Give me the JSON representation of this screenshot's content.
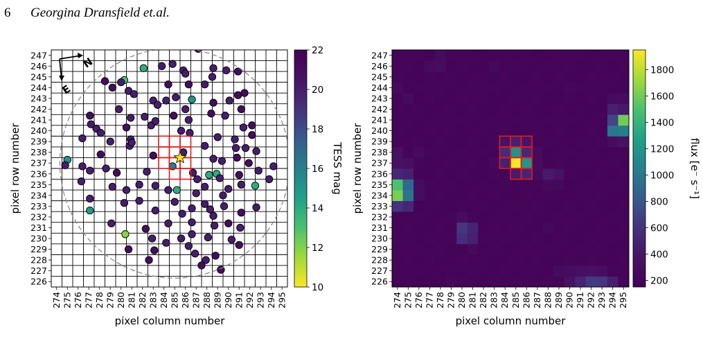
{
  "header": {
    "page_number": "6",
    "running_head": "Georgina Dransfield et.al."
  },
  "chart_data": [
    {
      "type": "scatter",
      "panel": "left",
      "xlabel": "pixel column number",
      "ylabel": "pixel row number",
      "colorbar_label": "TESS mag",
      "colorbar_ticks": [
        10,
        12,
        14,
        16,
        18,
        20,
        22
      ],
      "colorbar_range": [
        10,
        22
      ],
      "colormap": "viridis_r",
      "xticks": [
        "274",
        "275",
        "276",
        "277",
        "278",
        "279",
        "280",
        "281",
        "282",
        "283",
        "284",
        "285",
        "286",
        "287",
        "288",
        "289",
        "290",
        "291",
        "292",
        "293",
        "294",
        "295"
      ],
      "yticks": [
        "226",
        "227",
        "228",
        "229",
        "230",
        "231",
        "232",
        "233",
        "234",
        "235",
        "236",
        "237",
        "238",
        "239",
        "240",
        "241",
        "242",
        "243",
        "244",
        "245",
        "246",
        "247"
      ],
      "compass": {
        "north_label": "N",
        "east_label": "E"
      },
      "aperture_pixels": [
        [
          284,
          239
        ],
        [
          285,
          239
        ],
        [
          286,
          239
        ],
        [
          284,
          238
        ],
        [
          285,
          238
        ],
        [
          286,
          238
        ],
        [
          284,
          237
        ],
        [
          285,
          237
        ],
        [
          286,
          237
        ],
        [
          285,
          236
        ],
        [
          286,
          236
        ]
      ],
      "target": {
        "x": 285.5,
        "y": 237.5,
        "marker": "star"
      },
      "field_circle": {
        "center": [
          285.0,
          237.0
        ],
        "radius": 10.7,
        "style": "dashed"
      },
      "grid": "on",
      "stars": [
        [
          287.2,
          247.6,
          21
        ],
        [
          283.8,
          246.0,
          20
        ],
        [
          284.8,
          246.2,
          20
        ],
        [
          282.1,
          245.8,
          14
        ],
        [
          285.8,
          245.6,
          20
        ],
        [
          286.0,
          245.3,
          20
        ],
        [
          288.6,
          245.8,
          20
        ],
        [
          289.8,
          245.6,
          20
        ],
        [
          290.9,
          245.5,
          21
        ],
        [
          288.5,
          245.0,
          20
        ],
        [
          280.3,
          244.7,
          13
        ],
        [
          280.0,
          244.5,
          20
        ],
        [
          278.5,
          244.6,
          21
        ],
        [
          279.2,
          244.0,
          21
        ],
        [
          284.4,
          244.3,
          21
        ],
        [
          286.3,
          244.3,
          21
        ],
        [
          287.8,
          244.3,
          20
        ],
        [
          280.7,
          243.7,
          20
        ],
        [
          281.2,
          243.4,
          20
        ],
        [
          290.9,
          243.3,
          21
        ],
        [
          291.5,
          243.5,
          21
        ],
        [
          285.1,
          243.1,
          20
        ],
        [
          283.0,
          242.8,
          20
        ],
        [
          283.4,
          242.4,
          20
        ],
        [
          284.2,
          242.8,
          20
        ],
        [
          286.6,
          242.9,
          15
        ],
        [
          288.6,
          242.6,
          21
        ],
        [
          290.1,
          242.8,
          20
        ],
        [
          279.8,
          242.0,
          20
        ],
        [
          291.2,
          242.0,
          21
        ],
        [
          286.0,
          242.0,
          20
        ],
        [
          288.4,
          241.6,
          21
        ],
        [
          289.7,
          241.4,
          20
        ],
        [
          277.1,
          241.4,
          21
        ],
        [
          282.2,
          241.3,
          20
        ],
        [
          284.9,
          241.4,
          21
        ],
        [
          280.9,
          241.2,
          20
        ],
        [
          286.3,
          241.0,
          20
        ],
        [
          291.4,
          240.3,
          20
        ],
        [
          277.2,
          240.6,
          20
        ],
        [
          277.7,
          240.2,
          20
        ],
        [
          278.1,
          239.8,
          20
        ],
        [
          280.5,
          240.3,
          21
        ],
        [
          282.8,
          240.5,
          20
        ],
        [
          285.6,
          240.0,
          20
        ],
        [
          286.4,
          239.8,
          20
        ],
        [
          289.0,
          239.4,
          20
        ],
        [
          290.6,
          239.2,
          20
        ],
        [
          292.2,
          239.6,
          21
        ],
        [
          292.2,
          240.5,
          21
        ],
        [
          276.4,
          239.3,
          20
        ],
        [
          279.0,
          239.0,
          20
        ],
        [
          280.8,
          238.6,
          20
        ],
        [
          280.9,
          239.2,
          20
        ],
        [
          281.0,
          238.9,
          20
        ],
        [
          287.8,
          238.6,
          20
        ],
        [
          290.7,
          238.4,
          20
        ],
        [
          292.6,
          238.1,
          20
        ],
        [
          278.1,
          237.8,
          21
        ],
        [
          283.0,
          237.7,
          21
        ],
        [
          285.8,
          238.0,
          20
        ],
        [
          288.6,
          237.4,
          20
        ],
        [
          289.4,
          237.2,
          20
        ],
        [
          290.8,
          237.5,
          21
        ],
        [
          291.9,
          237.0,
          21
        ],
        [
          275.0,
          237.3,
          15
        ],
        [
          274.8,
          236.8,
          20
        ],
        [
          276.4,
          236.7,
          20
        ],
        [
          277.1,
          236.3,
          20
        ],
        [
          278.6,
          236.5,
          20
        ],
        [
          279.6,
          236.1,
          21
        ],
        [
          282.4,
          236.2,
          20
        ],
        [
          286.7,
          236.1,
          20
        ],
        [
          288.2,
          235.9,
          14
        ],
        [
          288.9,
          236.0,
          14
        ],
        [
          289.2,
          235.6,
          20
        ],
        [
          291.0,
          235.9,
          21
        ],
        [
          292.8,
          236.3,
          20
        ],
        [
          294.2,
          236.7,
          20
        ],
        [
          276.3,
          235.3,
          20
        ],
        [
          279.2,
          234.8,
          20
        ],
        [
          280.5,
          234.5,
          20
        ],
        [
          281.7,
          235.0,
          20
        ],
        [
          283.2,
          234.9,
          20
        ],
        [
          284.4,
          234.5,
          20
        ],
        [
          285.2,
          234.5,
          14
        ],
        [
          287.1,
          235.5,
          20
        ],
        [
          290.0,
          234.6,
          20
        ],
        [
          291.2,
          235.0,
          20
        ],
        [
          292.5,
          234.9,
          14
        ],
        [
          293.8,
          235.5,
          20
        ],
        [
          287.0,
          234.2,
          20
        ],
        [
          287.8,
          234.8,
          20
        ],
        [
          289.5,
          234.0,
          20
        ],
        [
          277.1,
          233.7,
          20
        ],
        [
          280.3,
          233.3,
          20
        ],
        [
          281.7,
          233.5,
          20
        ],
        [
          285.0,
          233.4,
          20
        ],
        [
          286.6,
          232.8,
          20
        ],
        [
          288.3,
          232.7,
          20
        ],
        [
          287.8,
          233.2,
          20
        ],
        [
          289.6,
          233.0,
          20
        ],
        [
          292.6,
          232.9,
          20
        ],
        [
          277.1,
          232.6,
          15
        ],
        [
          283.2,
          232.6,
          20
        ],
        [
          285.7,
          232.3,
          20
        ],
        [
          288.6,
          232.1,
          20
        ],
        [
          291.2,
          232.4,
          21
        ],
        [
          279.1,
          231.4,
          20
        ],
        [
          282.3,
          230.9,
          21
        ],
        [
          284.4,
          231.4,
          20
        ],
        [
          286.6,
          231.5,
          20
        ],
        [
          288.7,
          231.2,
          20
        ],
        [
          290.0,
          231.4,
          21
        ],
        [
          291.1,
          231.0,
          20
        ],
        [
          280.4,
          230.4,
          12
        ],
        [
          282.9,
          230.0,
          20
        ],
        [
          285.6,
          230.0,
          20
        ],
        [
          286.6,
          230.4,
          20
        ],
        [
          288.1,
          230.1,
          20
        ],
        [
          290.3,
          229.9,
          20
        ],
        [
          284.2,
          229.6,
          20
        ],
        [
          286.3,
          229.3,
          20
        ],
        [
          291.0,
          229.4,
          21
        ],
        [
          280.7,
          229.0,
          21
        ],
        [
          283.1,
          228.9,
          21
        ],
        [
          286.9,
          228.6,
          20
        ],
        [
          287.9,
          228.0,
          20
        ],
        [
          288.8,
          228.4,
          21
        ],
        [
          282.6,
          228.0,
          21
        ],
        [
          289.3,
          227.1,
          21
        ],
        [
          287.5,
          227.5,
          21
        ],
        [
          284.8,
          236.7,
          16
        ],
        [
          283.2,
          240.9,
          20
        ],
        [
          291.6,
          238.4,
          20
        ]
      ]
    },
    {
      "type": "heatmap",
      "panel": "right",
      "xlabel": "pixel column number",
      "ylabel": "pixel row number",
      "colorbar_label": "flux [e⁻ s⁻¹]",
      "colorbar_ticks": [
        200,
        400,
        600,
        800,
        1000,
        1200,
        1400,
        1600,
        1800
      ],
      "colorbar_range": [
        150,
        1950
      ],
      "colormap": "viridis",
      "x": [
        274,
        275,
        276,
        277,
        278,
        279,
        280,
        281,
        282,
        283,
        284,
        285,
        286,
        287,
        288,
        289,
        290,
        291,
        292,
        293,
        294,
        295
      ],
      "y": [
        226,
        227,
        228,
        229,
        230,
        231,
        232,
        233,
        234,
        235,
        236,
        237,
        238,
        239,
        240,
        241,
        242,
        243,
        244,
        245,
        246,
        247
      ],
      "aperture_pixels": [
        [
          284,
          239
        ],
        [
          285,
          239
        ],
        [
          286,
          239
        ],
        [
          284,
          238
        ],
        [
          285,
          238
        ],
        [
          286,
          238
        ],
        [
          284,
          237
        ],
        [
          285,
          237
        ],
        [
          286,
          237
        ],
        [
          285,
          236
        ],
        [
          286,
          236
        ]
      ],
      "bright_pixels": [
        {
          "x": 274,
          "y": 235,
          "value": 1500
        },
        {
          "x": 274,
          "y": 234,
          "value": 1620
        },
        {
          "x": 275,
          "y": 235,
          "value": 900
        },
        {
          "x": 275,
          "y": 234,
          "value": 980
        },
        {
          "x": 274,
          "y": 236,
          "value": 520
        },
        {
          "x": 275,
          "y": 236,
          "value": 470
        },
        {
          "x": 274,
          "y": 233,
          "value": 600
        },
        {
          "x": 275,
          "y": 233,
          "value": 520
        },
        {
          "x": 274,
          "y": 237,
          "value": 350
        },
        {
          "x": 274,
          "y": 238,
          "value": 330
        },
        {
          "x": 275,
          "y": 237,
          "value": 320
        },
        {
          "x": 276,
          "y": 235,
          "value": 300
        },
        {
          "x": 276,
          "y": 234,
          "value": 290
        },
        {
          "x": 285,
          "y": 237,
          "value": 1950
        },
        {
          "x": 285,
          "y": 238,
          "value": 1180
        },
        {
          "x": 286,
          "y": 237,
          "value": 1200
        },
        {
          "x": 284,
          "y": 238,
          "value": 560
        },
        {
          "x": 286,
          "y": 238,
          "value": 520
        },
        {
          "x": 285,
          "y": 239,
          "value": 470
        },
        {
          "x": 284,
          "y": 237,
          "value": 470
        },
        {
          "x": 286,
          "y": 236,
          "value": 500
        },
        {
          "x": 285,
          "y": 236,
          "value": 430
        },
        {
          "x": 284,
          "y": 239,
          "value": 360
        },
        {
          "x": 286,
          "y": 239,
          "value": 380
        },
        {
          "x": 287,
          "y": 237,
          "value": 300
        },
        {
          "x": 287,
          "y": 238,
          "value": 280
        },
        {
          "x": 283,
          "y": 237,
          "value": 260
        },
        {
          "x": 287,
          "y": 236,
          "value": 260
        },
        {
          "x": 295,
          "y": 241,
          "value": 1600
        },
        {
          "x": 294,
          "y": 241,
          "value": 700
        },
        {
          "x": 294,
          "y": 240,
          "value": 1000
        },
        {
          "x": 295,
          "y": 240,
          "value": 1050
        },
        {
          "x": 294,
          "y": 242,
          "value": 480
        },
        {
          "x": 295,
          "y": 242,
          "value": 420
        },
        {
          "x": 295,
          "y": 239,
          "value": 360
        },
        {
          "x": 294,
          "y": 239,
          "value": 300
        },
        {
          "x": 295,
          "y": 243,
          "value": 300
        },
        {
          "x": 294,
          "y": 243,
          "value": 280
        },
        {
          "x": 280,
          "y": 231,
          "value": 620
        },
        {
          "x": 280,
          "y": 230,
          "value": 560
        },
        {
          "x": 281,
          "y": 231,
          "value": 500
        },
        {
          "x": 281,
          "y": 230,
          "value": 470
        },
        {
          "x": 280,
          "y": 232,
          "value": 300
        },
        {
          "x": 281,
          "y": 229,
          "value": 260
        },
        {
          "x": 288,
          "y": 236,
          "value": 420
        },
        {
          "x": 289,
          "y": 236,
          "value": 360
        },
        {
          "x": 288,
          "y": 235,
          "value": 260
        },
        {
          "x": 289,
          "y": 235,
          "value": 250
        },
        {
          "x": 292,
          "y": 226,
          "value": 650
        },
        {
          "x": 293,
          "y": 226,
          "value": 620
        },
        {
          "x": 291,
          "y": 226,
          "value": 500
        },
        {
          "x": 294,
          "y": 226,
          "value": 460
        },
        {
          "x": 290,
          "y": 226,
          "value": 360
        },
        {
          "x": 291,
          "y": 227,
          "value": 330
        },
        {
          "x": 292,
          "y": 227,
          "value": 350
        },
        {
          "x": 293,
          "y": 227,
          "value": 310
        },
        {
          "x": 290,
          "y": 227,
          "value": 290
        },
        {
          "x": 289,
          "y": 227,
          "value": 270
        },
        {
          "x": 278,
          "y": 246,
          "value": 300
        },
        {
          "x": 277,
          "y": 246,
          "value": 280
        },
        {
          "x": 278,
          "y": 247,
          "value": 270
        },
        {
          "x": 274,
          "y": 244,
          "value": 260
        },
        {
          "x": 275,
          "y": 243,
          "value": 270
        },
        {
          "x": 283,
          "y": 246,
          "value": 260
        },
        {
          "x": 276,
          "y": 238,
          "value": 270
        },
        {
          "x": 288,
          "y": 231,
          "value": 250
        },
        {
          "x": 279,
          "y": 226,
          "value": 240
        },
        {
          "x": 290,
          "y": 244,
          "value": 240
        }
      ],
      "background_value": 185
    }
  ]
}
